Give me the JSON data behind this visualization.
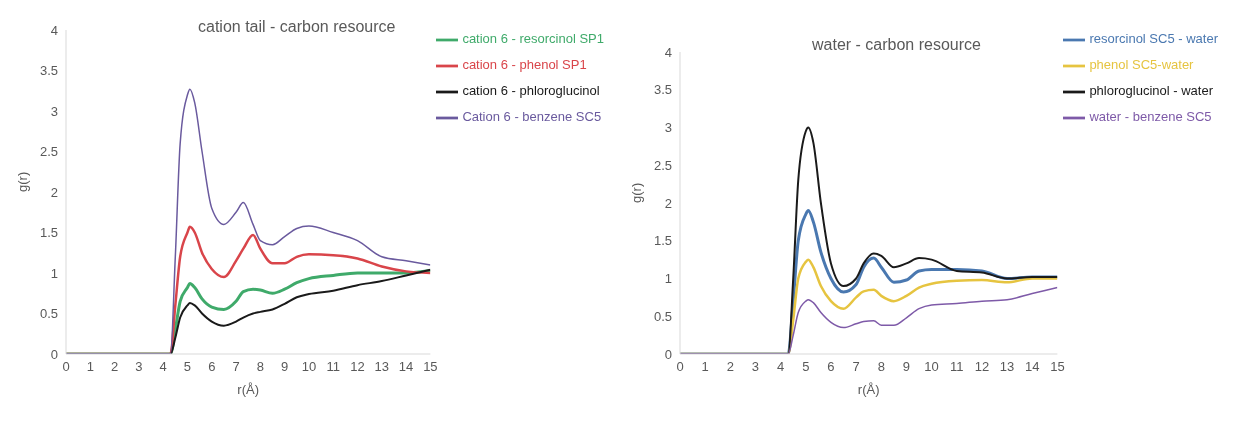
{
  "chart_data": [
    {
      "type": "line",
      "title": "cation tail - carbon resource",
      "xlabel": "r(Å)",
      "ylabel": "g(r)",
      "x": [
        0,
        4.3,
        4.5,
        4.7,
        5.0,
        5.1,
        5.3,
        5.6,
        6.0,
        6.5,
        7.0,
        7.3,
        7.7,
        8.0,
        8.5,
        9.0,
        9.5,
        10,
        11,
        12,
        13,
        14,
        15
      ],
      "series": [
        {
          "name": "cation 6 - resorcinol SP1",
          "color": "#3faa6a",
          "values": [
            0,
            0,
            0.3,
            0.65,
            0.82,
            0.87,
            0.82,
            0.68,
            0.58,
            0.55,
            0.65,
            0.77,
            0.8,
            0.79,
            0.75,
            0.8,
            0.88,
            0.93,
            0.97,
            1.0,
            1.0,
            1.0,
            1.03
          ]
        },
        {
          "name": "cation 6 - phenol SP1",
          "color": "#d9454a",
          "values": [
            0,
            0,
            0.6,
            1.2,
            1.5,
            1.57,
            1.5,
            1.25,
            1.05,
            0.95,
            1.15,
            1.3,
            1.47,
            1.3,
            1.12,
            1.12,
            1.2,
            1.23,
            1.22,
            1.18,
            1.08,
            1.02,
            1.0
          ]
        },
        {
          "name": "cation 6 - phloroglucinol",
          "color": "#1a1a1a",
          "values": [
            0,
            0,
            0.2,
            0.45,
            0.6,
            0.63,
            0.6,
            0.5,
            0.4,
            0.35,
            0.4,
            0.45,
            0.5,
            0.52,
            0.55,
            0.62,
            0.7,
            0.74,
            0.78,
            0.85,
            0.9,
            0.97,
            1.04
          ]
        },
        {
          "name": "Cation 6 - benzene SC5",
          "color": "#6a5a9e",
          "values": [
            0,
            0,
            1.2,
            2.6,
            3.2,
            3.27,
            3.1,
            2.5,
            1.8,
            1.6,
            1.75,
            1.87,
            1.6,
            1.4,
            1.35,
            1.45,
            1.55,
            1.58,
            1.5,
            1.4,
            1.2,
            1.15,
            1.1
          ]
        }
      ],
      "xlim": [
        0,
        15
      ],
      "xticks": [
        0,
        1,
        2,
        3,
        4,
        5,
        6,
        7,
        8,
        9,
        10,
        11,
        12,
        13,
        14,
        15
      ],
      "ylim": [
        0,
        4
      ],
      "yticks": [
        0,
        0.5,
        1,
        1.5,
        2,
        2.5,
        3,
        3.5,
        4
      ],
      "legend": "top right",
      "marker": "none",
      "line_style": "solid"
    },
    {
      "type": "line",
      "title": "water - carbon resource",
      "xlabel": "r(Å)",
      "ylabel": "g(r)",
      "x": [
        0,
        4.3,
        4.5,
        4.7,
        5.0,
        5.1,
        5.3,
        5.6,
        6.0,
        6.5,
        7.0,
        7.3,
        7.7,
        8.0,
        8.5,
        9.0,
        9.5,
        10,
        11,
        12,
        13,
        14,
        15
      ],
      "series": [
        {
          "name": "resorcinol SC5 - water",
          "color": "#4a78b0",
          "values": [
            0,
            0,
            0.7,
            1.5,
            1.85,
            1.9,
            1.75,
            1.35,
            1.0,
            0.82,
            0.92,
            1.15,
            1.27,
            1.15,
            0.95,
            0.98,
            1.1,
            1.12,
            1.12,
            1.1,
            1.0,
            1.02,
            1.02
          ]
        },
        {
          "name": "phenol SC5-water",
          "color": "#e6c440",
          "values": [
            0,
            0,
            0.45,
            1.0,
            1.22,
            1.25,
            1.15,
            0.9,
            0.7,
            0.6,
            0.75,
            0.83,
            0.85,
            0.77,
            0.7,
            0.77,
            0.88,
            0.93,
            0.97,
            0.98,
            0.95,
            1.0,
            1.0
          ]
        },
        {
          "name": "phloroglucinol - water",
          "color": "#1a1a1a",
          "values": [
            0,
            0,
            1.0,
            2.3,
            2.95,
            3.0,
            2.8,
            2.0,
            1.2,
            0.9,
            1.0,
            1.2,
            1.33,
            1.3,
            1.15,
            1.2,
            1.27,
            1.25,
            1.1,
            1.08,
            1.0,
            1.02,
            1.02
          ]
        },
        {
          "name": "water - benzene SC5",
          "color": "#7e5aa8",
          "values": [
            0,
            0,
            0.25,
            0.55,
            0.7,
            0.72,
            0.68,
            0.55,
            0.42,
            0.35,
            0.4,
            0.43,
            0.44,
            0.38,
            0.38,
            0.48,
            0.6,
            0.65,
            0.67,
            0.7,
            0.72,
            0.8,
            0.88
          ]
        }
      ],
      "xlim": [
        0,
        15
      ],
      "xticks": [
        0,
        1,
        2,
        3,
        4,
        5,
        6,
        7,
        8,
        9,
        10,
        11,
        12,
        13,
        14,
        15
      ],
      "ylim": [
        0,
        4
      ],
      "yticks": [
        0,
        0.5,
        1,
        1.5,
        2,
        2.5,
        3,
        3.5,
        4
      ],
      "legend": "top right",
      "marker": "none",
      "line_style": "solid"
    }
  ]
}
